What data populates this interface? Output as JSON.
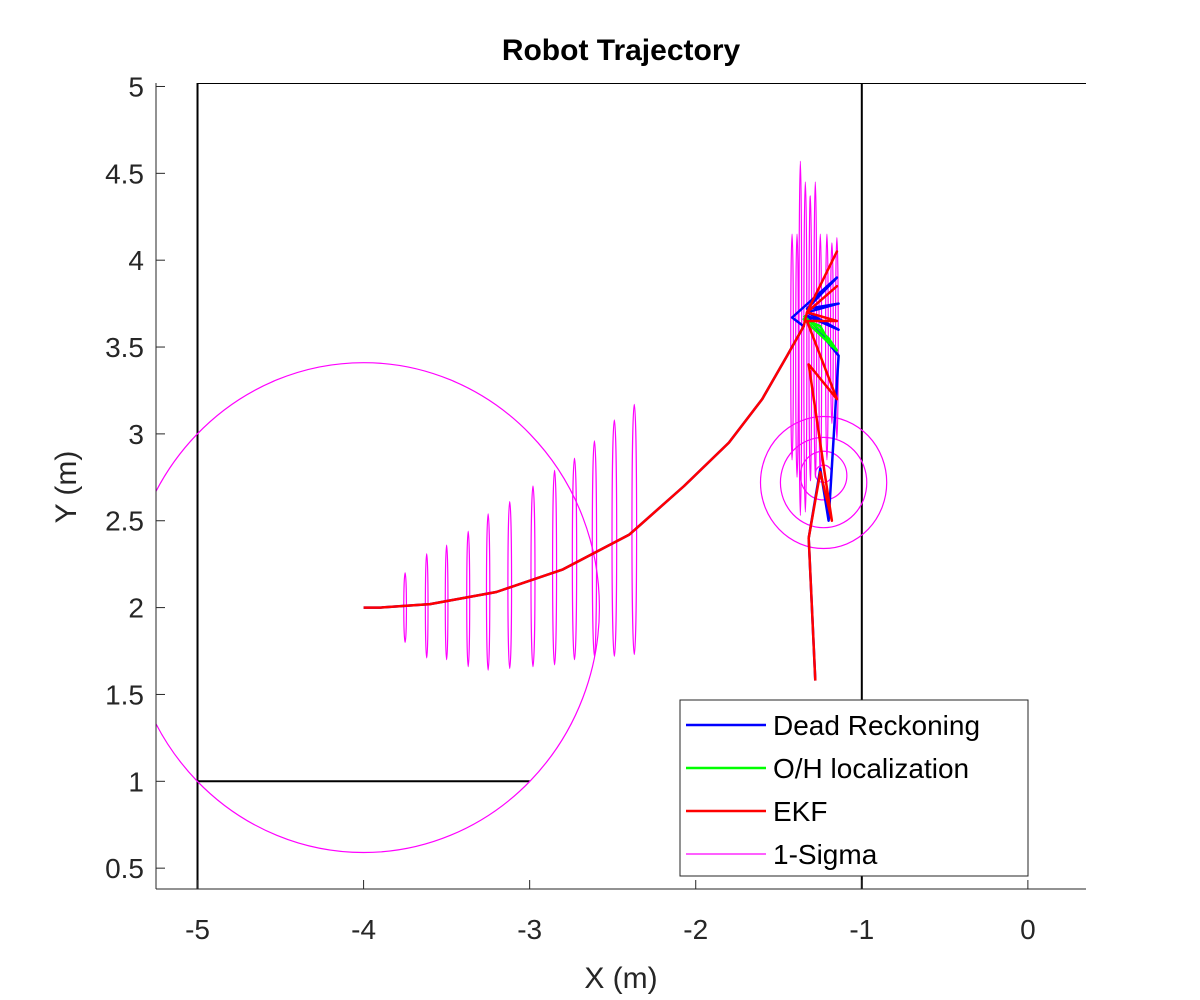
{
  "chart_data": {
    "type": "line",
    "title": "Robot Trajectory",
    "xlabel": "X (m)",
    "ylabel": "Y (m)",
    "xlim": [
      -5.25,
      0.35
    ],
    "ylim": [
      0.38,
      5.02
    ],
    "xticks": [
      {
        "value": -5,
        "label": "-5"
      },
      {
        "value": -4,
        "label": "-4"
      },
      {
        "value": -3,
        "label": "-3"
      },
      {
        "value": -2,
        "label": "-2"
      },
      {
        "value": -1,
        "label": "-1"
      },
      {
        "value": 0,
        "label": "0"
      }
    ],
    "yticks": [
      {
        "value": 0.5,
        "label": "0.5"
      },
      {
        "value": 1,
        "label": "1"
      },
      {
        "value": 1.5,
        "label": "1.5"
      },
      {
        "value": 2,
        "label": "2"
      },
      {
        "value": 2.5,
        "label": "2.5"
      },
      {
        "value": 3,
        "label": "3"
      },
      {
        "value": 3.5,
        "label": "3.5"
      },
      {
        "value": 4,
        "label": "4"
      },
      {
        "value": 4.5,
        "label": "4.5"
      },
      {
        "value": 5,
        "label": "5"
      }
    ],
    "grid": false,
    "legend_position": "bottom-right",
    "map_walls": [
      [
        [
          -5,
          0.38
        ],
        [
          -5,
          5.02
        ]
      ],
      [
        [
          -5,
          5.02
        ],
        [
          0.35,
          5.02
        ]
      ],
      [
        [
          -1,
          5.02
        ],
        [
          -1,
          0.38
        ]
      ],
      [
        [
          -5,
          1
        ],
        [
          -3,
          1
        ]
      ]
    ],
    "series": [
      {
        "name": "Dead Reckoning",
        "color": "#0000ff",
        "points": [
          [
            -4,
            2
          ],
          [
            -3.9,
            2
          ],
          [
            -3.6,
            2.02
          ],
          [
            -3.2,
            2.09
          ],
          [
            -2.8,
            2.22
          ],
          [
            -2.4,
            2.42
          ],
          [
            -2.07,
            2.7
          ],
          [
            -1.8,
            2.95
          ],
          [
            -1.6,
            3.2
          ],
          [
            -1.45,
            3.45
          ],
          [
            -1.35,
            3.62
          ],
          [
            -1.42,
            3.67
          ],
          [
            -1.15,
            3.9
          ],
          [
            -1.33,
            3.72
          ],
          [
            -1.14,
            3.75
          ],
          [
            -1.33,
            3.7
          ],
          [
            -1.14,
            3.6
          ],
          [
            -1.33,
            3.68
          ],
          [
            -1.14,
            3.45
          ],
          [
            -1.2,
            2.5
          ],
          [
            -1.25,
            2.8
          ],
          [
            -1.32,
            2.4
          ],
          [
            -1.28,
            1.58
          ]
        ]
      },
      {
        "name": "O/H localization",
        "color": "#00ff00",
        "points": [
          [
            -1.35,
            3.68
          ],
          [
            -1.2,
            3.55
          ],
          [
            -1.15,
            3.48
          ],
          [
            -1.35,
            3.66
          ],
          [
            -1.25,
            3.62
          ],
          [
            -1.18,
            3.5
          ]
        ]
      },
      {
        "name": "EKF",
        "color": "#ff0000",
        "points": [
          [
            -4,
            2
          ],
          [
            -3.9,
            2
          ],
          [
            -3.6,
            2.02
          ],
          [
            -3.2,
            2.09
          ],
          [
            -2.8,
            2.22
          ],
          [
            -2.4,
            2.42
          ],
          [
            -2.07,
            2.7
          ],
          [
            -1.8,
            2.95
          ],
          [
            -1.6,
            3.2
          ],
          [
            -1.45,
            3.45
          ],
          [
            -1.35,
            3.62
          ],
          [
            -1.33,
            3.7
          ],
          [
            -1.15,
            4.05
          ],
          [
            -1.33,
            3.7
          ],
          [
            -1.15,
            3.85
          ],
          [
            -1.33,
            3.7
          ],
          [
            -1.15,
            3.65
          ],
          [
            -1.33,
            3.65
          ],
          [
            -1.15,
            3.2
          ],
          [
            -1.32,
            3.4
          ],
          [
            -1.22,
            2.75
          ],
          [
            -1.18,
            2.5
          ],
          [
            -1.25,
            2.78
          ],
          [
            -1.32,
            2.4
          ],
          [
            -1.28,
            1.58
          ]
        ]
      },
      {
        "name": "1-Sigma",
        "color": "#ff00ff",
        "ellipses": [
          {
            "cx": -4,
            "cy": 2,
            "rx": 1.42,
            "ry": 1.41
          },
          {
            "cx": -1.23,
            "cy": 2.72,
            "rx": 0.38,
            "ry": 0.38
          },
          {
            "cx": -1.23,
            "cy": 2.72,
            "rx": 0.26,
            "ry": 0.26
          },
          {
            "cx": -1.23,
            "cy": 2.76,
            "rx": 0.14,
            "ry": 0.14
          },
          {
            "cx": -1.23,
            "cy": 2.77,
            "rx": 0.05,
            "ry": 0.05
          },
          {
            "cx": -3.75,
            "cy": 2.0,
            "rx": 0.008,
            "ry": 0.2
          },
          {
            "cx": -3.62,
            "cy": 2.01,
            "rx": 0.008,
            "ry": 0.3
          },
          {
            "cx": -3.5,
            "cy": 2.03,
            "rx": 0.008,
            "ry": 0.33
          },
          {
            "cx": -3.37,
            "cy": 2.05,
            "rx": 0.009,
            "ry": 0.39
          },
          {
            "cx": -3.25,
            "cy": 2.09,
            "rx": 0.01,
            "ry": 0.45
          },
          {
            "cx": -3.12,
            "cy": 2.13,
            "rx": 0.011,
            "ry": 0.48
          },
          {
            "cx": -2.98,
            "cy": 2.18,
            "rx": 0.012,
            "ry": 0.52
          },
          {
            "cx": -2.85,
            "cy": 2.23,
            "rx": 0.012,
            "ry": 0.56
          },
          {
            "cx": -2.73,
            "cy": 2.28,
            "rx": 0.013,
            "ry": 0.58
          },
          {
            "cx": -2.61,
            "cy": 2.34,
            "rx": 0.013,
            "ry": 0.62
          },
          {
            "cx": -2.49,
            "cy": 2.4,
            "rx": 0.014,
            "ry": 0.68
          },
          {
            "cx": -2.37,
            "cy": 2.45,
            "rx": 0.014,
            "ry": 0.72
          },
          {
            "cx": -1.42,
            "cy": 3.5,
            "rx": 0.008,
            "ry": 0.65
          },
          {
            "cx": -1.39,
            "cy": 3.45,
            "rx": 0.008,
            "ry": 0.7
          },
          {
            "cx": -1.37,
            "cy": 3.55,
            "rx": 0.008,
            "ry": 1.02
          },
          {
            "cx": -1.34,
            "cy": 3.5,
            "rx": 0.009,
            "ry": 0.95
          },
          {
            "cx": -1.31,
            "cy": 3.55,
            "rx": 0.008,
            "ry": 0.82
          },
          {
            "cx": -1.28,
            "cy": 3.6,
            "rx": 0.008,
            "ry": 0.85
          },
          {
            "cx": -1.25,
            "cy": 3.45,
            "rx": 0.008,
            "ry": 0.7
          },
          {
            "cx": -1.21,
            "cy": 3.5,
            "rx": 0.008,
            "ry": 0.65
          },
          {
            "cx": -1.18,
            "cy": 3.58,
            "rx": 0.008,
            "ry": 0.52
          },
          {
            "cx": -1.15,
            "cy": 3.55,
            "rx": 0.008,
            "ry": 0.58
          }
        ]
      }
    ],
    "legend": [
      {
        "label": "Dead Reckoning",
        "color": "#0000ff",
        "width": 2.5
      },
      {
        "label": "O/H localization",
        "color": "#00ff00",
        "width": 2.5
      },
      {
        "label": "EKF",
        "color": "#ff0000",
        "width": 2.5
      },
      {
        "label": "1-Sigma",
        "color": "#ff00ff",
        "width": 1.2
      }
    ]
  }
}
